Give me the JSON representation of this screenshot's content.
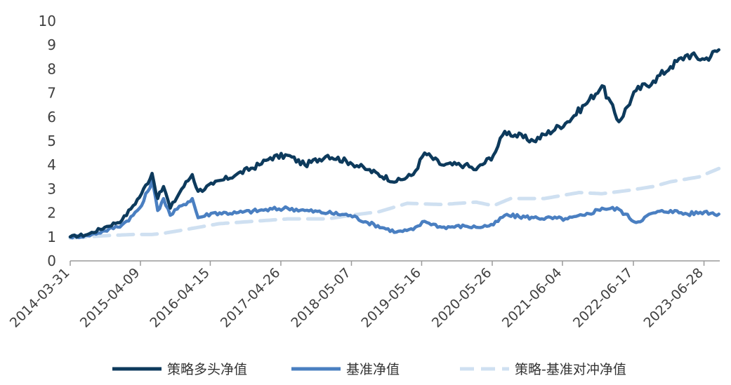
{
  "chart_data": {
    "type": "line",
    "title": "",
    "xlabel": "",
    "ylabel": "",
    "ylim": [
      0,
      10
    ],
    "yticks": [
      0,
      1,
      2,
      3,
      4,
      5,
      6,
      7,
      8,
      9,
      10
    ],
    "xticks": [
      "2014-03-31",
      "2015-04-09",
      "2016-04-15",
      "2017-04-26",
      "2018-05-07",
      "2019-05-16",
      "2020-05-26",
      "2021-06-04",
      "2022-06-17",
      "2023-06-28"
    ],
    "grid": false,
    "legend_position": "bottom",
    "series": [
      {
        "name": "策略多头净值",
        "color": "#0d3a5c",
        "style": "solid",
        "points": [
          [
            "2014-03-31",
            1.0
          ],
          [
            "2014-07-01",
            1.1
          ],
          [
            "2014-10-01",
            1.4
          ],
          [
            "2015-01-01",
            1.7
          ],
          [
            "2015-03-01",
            2.3
          ],
          [
            "2015-04-15",
            2.8
          ],
          [
            "2015-06-10",
            3.65
          ],
          [
            "2015-07-10",
            2.6
          ],
          [
            "2015-08-10",
            3.1
          ],
          [
            "2015-09-15",
            2.2
          ],
          [
            "2015-11-15",
            3.0
          ],
          [
            "2016-01-10",
            3.6
          ],
          [
            "2016-02-10",
            2.9
          ],
          [
            "2016-05-01",
            3.2
          ],
          [
            "2016-09-01",
            3.6
          ],
          [
            "2017-01-01",
            4.0
          ],
          [
            "2017-03-01",
            4.3
          ],
          [
            "2017-06-01",
            4.4
          ],
          [
            "2017-09-01",
            4.0
          ],
          [
            "2018-01-01",
            4.4
          ],
          [
            "2018-05-01",
            4.1
          ],
          [
            "2018-08-01",
            3.8
          ],
          [
            "2019-01-01",
            3.3
          ],
          [
            "2019-04-01",
            3.6
          ],
          [
            "2019-06-01",
            4.5
          ],
          [
            "2019-09-01",
            4.0
          ],
          [
            "2020-01-01",
            4.0
          ],
          [
            "2020-03-01",
            3.8
          ],
          [
            "2020-06-01",
            4.4
          ],
          [
            "2020-08-01",
            5.4
          ],
          [
            "2021-01-01",
            5.0
          ],
          [
            "2021-07-01",
            5.8
          ],
          [
            "2021-10-01",
            6.5
          ],
          [
            "2022-01-01",
            7.3
          ],
          [
            "2022-04-01",
            5.8
          ],
          [
            "2022-07-01",
            7.1
          ],
          [
            "2022-10-01",
            7.5
          ],
          [
            "2023-01-01",
            8.1
          ],
          [
            "2023-04-01",
            8.6
          ],
          [
            "2023-07-01",
            8.4
          ],
          [
            "2023-09-15",
            8.8
          ]
        ]
      },
      {
        "name": "基准净值",
        "color": "#4a7fc1",
        "style": "solid",
        "points": [
          [
            "2014-03-31",
            1.0
          ],
          [
            "2014-07-01",
            1.05
          ],
          [
            "2014-10-01",
            1.25
          ],
          [
            "2015-01-01",
            1.5
          ],
          [
            "2015-03-01",
            1.9
          ],
          [
            "2015-04-15",
            2.3
          ],
          [
            "2015-06-10",
            3.35
          ],
          [
            "2015-07-10",
            2.1
          ],
          [
            "2015-08-10",
            2.6
          ],
          [
            "2015-09-15",
            1.9
          ],
          [
            "2015-11-15",
            2.3
          ],
          [
            "2016-01-10",
            2.6
          ],
          [
            "2016-02-10",
            1.8
          ],
          [
            "2016-05-01",
            2.0
          ],
          [
            "2016-09-01",
            2.0
          ],
          [
            "2017-01-01",
            2.1
          ],
          [
            "2017-06-01",
            2.2
          ],
          [
            "2017-09-01",
            2.1
          ],
          [
            "2018-01-01",
            2.0
          ],
          [
            "2018-05-01",
            1.9
          ],
          [
            "2018-08-01",
            1.6
          ],
          [
            "2019-01-01",
            1.2
          ],
          [
            "2019-04-01",
            1.3
          ],
          [
            "2019-06-01",
            1.65
          ],
          [
            "2019-09-01",
            1.4
          ],
          [
            "2020-01-01",
            1.45
          ],
          [
            "2020-03-01",
            1.4
          ],
          [
            "2020-06-01",
            1.5
          ],
          [
            "2020-08-01",
            1.9
          ],
          [
            "2021-01-01",
            1.8
          ],
          [
            "2021-07-01",
            1.75
          ],
          [
            "2021-10-01",
            1.9
          ],
          [
            "2022-01-01",
            2.2
          ],
          [
            "2022-04-01",
            2.15
          ],
          [
            "2022-07-01",
            1.6
          ],
          [
            "2022-10-01",
            2.0
          ],
          [
            "2023-01-01",
            2.1
          ],
          [
            "2023-04-01",
            1.95
          ],
          [
            "2023-07-01",
            2.05
          ],
          [
            "2023-09-15",
            1.95
          ]
        ]
      },
      {
        "name": "策略-基准对冲净值",
        "color": "#cfe0f1",
        "style": "dashed",
        "points": [
          [
            "2014-03-31",
            0.95
          ],
          [
            "2014-10-01",
            1.05
          ],
          [
            "2015-03-01",
            1.1
          ],
          [
            "2015-06-10",
            1.1
          ],
          [
            "2015-08-10",
            1.15
          ],
          [
            "2015-12-01",
            1.3
          ],
          [
            "2016-06-01",
            1.55
          ],
          [
            "2016-12-01",
            1.65
          ],
          [
            "2017-06-01",
            1.75
          ],
          [
            "2018-01-01",
            1.75
          ],
          [
            "2018-05-01",
            1.9
          ],
          [
            "2018-10-01",
            2.05
          ],
          [
            "2019-03-01",
            2.4
          ],
          [
            "2019-09-01",
            2.35
          ],
          [
            "2020-03-01",
            2.45
          ],
          [
            "2020-06-01",
            2.3
          ],
          [
            "2020-09-01",
            2.6
          ],
          [
            "2021-03-01",
            2.6
          ],
          [
            "2021-09-01",
            2.85
          ],
          [
            "2022-01-01",
            2.8
          ],
          [
            "2022-06-01",
            2.95
          ],
          [
            "2022-10-01",
            3.1
          ],
          [
            "2023-01-01",
            3.3
          ],
          [
            "2023-06-01",
            3.5
          ],
          [
            "2023-09-15",
            3.85
          ]
        ]
      }
    ]
  }
}
